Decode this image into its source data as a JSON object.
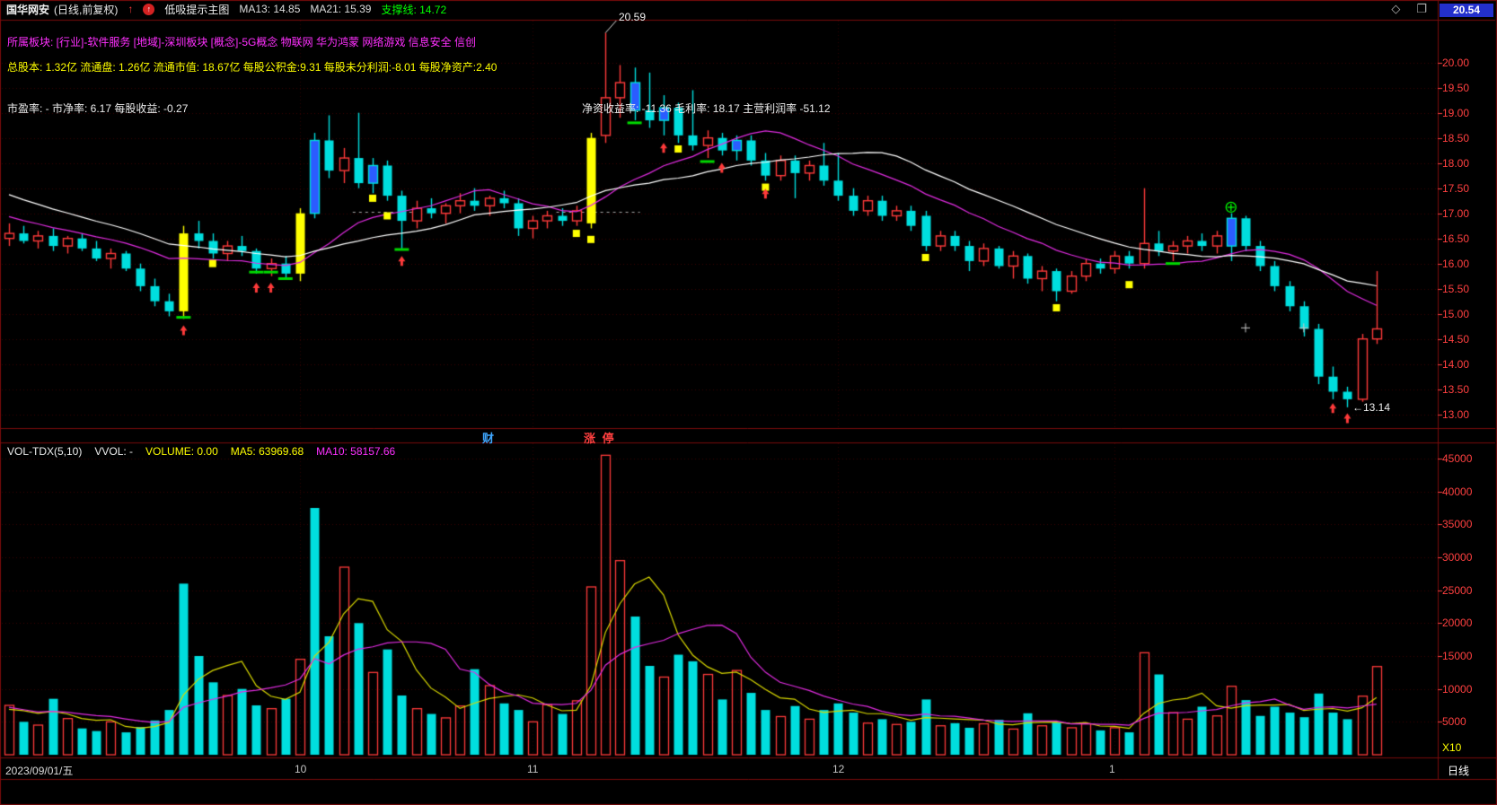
{
  "title_bar": {
    "stock": "国华网安",
    "period": "(日线,前复权)",
    "indicator": "低吸提示主图",
    "ma13": "MA13: 14.85",
    "ma21": "MA21: 15.39",
    "support": "支撑线: 14.72",
    "top_right_price": "20.54"
  },
  "icons": {
    "signal_arrow": "↑",
    "diamond": "◇",
    "window_box": "❐"
  },
  "info": {
    "sector": "所属板块: [行业]-软件服务 [地域]-深圳板块 [概念]-5G概念 物联网 华为鸿蒙 网络游戏 信息安全 信创",
    "capital": "总股本: 1.32亿 流通盘: 1.26亿 流通市值: 18.67亿 每股公积金:9.31 每股未分利润:-8.01 每股净资产:2.40",
    "valuation": "市盈率: - 市净率: 6.17 每股收益: -0.27",
    "profitability": "净资收益率: -11.36 毛利率: 18.17 主营利润率 -51.12"
  },
  "events": [
    {
      "i": 33,
      "label": "财",
      "color": "#3fa7ff"
    },
    {
      "i": 40,
      "label": "涨 停",
      "color": "#ff4040"
    }
  ],
  "volume_header": {
    "name": "VOL-TDX(5,10)",
    "vvol": "VVOL: -",
    "volume": "VOLUME: 0.00",
    "ma5": "MA5: 63969.68",
    "ma10": "MA10: 58157.66"
  },
  "axis": {
    "price_labels": [
      "20.00",
      "19.50",
      "19.00",
      "18.50",
      "18.00",
      "17.50",
      "17.00",
      "16.50",
      "16.00",
      "15.50",
      "15.00",
      "14.50",
      "14.00",
      "13.50",
      "13.00"
    ],
    "volume_labels": [
      "45000",
      "40000",
      "35000",
      "30000",
      "25000",
      "20000",
      "15000",
      "10000",
      "5000"
    ],
    "volume_unit": "X10"
  },
  "bottom_bar": {
    "date": "2023/09/01/五",
    "period": "日线"
  },
  "annotations": {
    "high": "20.59",
    "high_index": 41,
    "low": "←13.14",
    "low_index": 92,
    "low_price": 13.14
  },
  "chart_data": {
    "type": "candlestick",
    "title": "国华网安 日线 前复权",
    "price_axis": {
      "min": 13.0,
      "max": 20.78,
      "step": 0.5
    },
    "volume_axis": {
      "min": 0,
      "max": 45000,
      "step": 5000
    },
    "months": [
      [
        20,
        "10"
      ],
      [
        36,
        "11"
      ],
      [
        57,
        "12"
      ],
      [
        76,
        "1"
      ]
    ],
    "candles": [
      [
        16.5,
        16.8,
        16.35,
        16.6
      ],
      [
        16.6,
        16.75,
        16.4,
        16.45
      ],
      [
        16.45,
        16.65,
        16.3,
        16.55
      ],
      [
        16.55,
        16.7,
        16.25,
        16.35
      ],
      [
        16.35,
        16.55,
        16.2,
        16.5
      ],
      [
        16.5,
        16.6,
        16.25,
        16.3
      ],
      [
        16.3,
        16.45,
        16.05,
        16.1
      ],
      [
        16.1,
        16.3,
        15.9,
        16.2
      ],
      [
        16.2,
        16.25,
        15.85,
        15.9
      ],
      [
        15.9,
        16.0,
        15.45,
        15.55
      ],
      [
        15.55,
        15.7,
        15.15,
        15.25
      ],
      [
        15.25,
        15.4,
        14.95,
        15.05
      ],
      [
        15.05,
        16.75,
        14.9,
        16.6,
        "y"
      ],
      [
        16.6,
        16.85,
        16.3,
        16.45
      ],
      [
        16.45,
        16.6,
        16.1,
        16.2
      ],
      [
        16.2,
        16.45,
        16.05,
        16.35
      ],
      [
        16.35,
        16.55,
        16.15,
        16.25
      ],
      [
        16.25,
        16.3,
        15.8,
        15.9
      ],
      [
        15.9,
        16.1,
        15.75,
        16.0
      ],
      [
        16.0,
        16.15,
        15.7,
        15.8
      ],
      [
        15.8,
        17.1,
        15.65,
        17.0,
        "y"
      ],
      [
        17.0,
        18.6,
        16.9,
        18.45,
        "b"
      ],
      [
        18.45,
        18.95,
        17.7,
        17.85
      ],
      [
        17.85,
        18.3,
        17.6,
        18.1
      ],
      [
        18.1,
        19.0,
        17.5,
        17.6
      ],
      [
        17.6,
        18.1,
        17.4,
        17.95,
        "b"
      ],
      [
        17.95,
        18.05,
        17.25,
        17.35
      ],
      [
        17.35,
        17.45,
        16.3,
        16.85
      ],
      [
        16.85,
        17.25,
        16.7,
        17.1
      ],
      [
        17.1,
        17.3,
        16.9,
        17.0
      ],
      [
        17.0,
        17.2,
        16.8,
        17.15
      ],
      [
        17.15,
        17.4,
        17.0,
        17.25
      ],
      [
        17.25,
        17.5,
        17.05,
        17.15
      ],
      [
        17.15,
        17.35,
        16.95,
        17.3
      ],
      [
        17.3,
        17.45,
        17.1,
        17.2
      ],
      [
        17.2,
        17.3,
        16.55,
        16.7
      ],
      [
        16.7,
        16.95,
        16.5,
        16.85
      ],
      [
        16.85,
        17.05,
        16.7,
        16.95
      ],
      [
        16.95,
        17.1,
        16.75,
        16.85
      ],
      [
        16.85,
        17.15,
        16.75,
        17.05
      ],
      [
        16.8,
        18.6,
        16.7,
        18.5,
        "y"
      ],
      [
        18.55,
        20.59,
        18.4,
        19.3
      ],
      [
        19.3,
        19.95,
        18.9,
        19.6
      ],
      [
        19.6,
        19.9,
        18.85,
        19.05,
        "b"
      ],
      [
        19.05,
        19.8,
        18.7,
        18.85
      ],
      [
        18.85,
        19.35,
        18.55,
        19.1,
        "b"
      ],
      [
        19.1,
        19.2,
        18.4,
        18.55
      ],
      [
        18.55,
        19.45,
        18.25,
        18.35
      ],
      [
        18.35,
        18.65,
        18.1,
        18.5
      ],
      [
        18.5,
        18.6,
        18.15,
        18.25
      ],
      [
        18.25,
        18.55,
        18.05,
        18.45,
        "b"
      ],
      [
        18.45,
        18.55,
        17.95,
        18.05
      ],
      [
        18.05,
        18.2,
        17.65,
        17.75
      ],
      [
        17.75,
        18.15,
        17.65,
        18.05
      ],
      [
        18.05,
        18.15,
        17.3,
        17.8
      ],
      [
        17.8,
        18.05,
        17.65,
        17.95
      ],
      [
        17.95,
        18.4,
        17.55,
        17.65
      ],
      [
        17.65,
        18.2,
        17.25,
        17.35
      ],
      [
        17.35,
        17.5,
        16.95,
        17.05
      ],
      [
        17.05,
        17.35,
        16.95,
        17.25
      ],
      [
        17.25,
        17.35,
        16.85,
        16.95
      ],
      [
        16.95,
        17.15,
        16.85,
        17.05
      ],
      [
        17.05,
        17.15,
        16.65,
        16.75
      ],
      [
        16.95,
        17.05,
        16.25,
        16.35
      ],
      [
        16.35,
        16.65,
        16.25,
        16.55
      ],
      [
        16.55,
        16.65,
        16.25,
        16.35
      ],
      [
        16.35,
        16.45,
        15.85,
        16.05
      ],
      [
        16.05,
        16.4,
        15.95,
        16.3
      ],
      [
        16.3,
        16.35,
        15.9,
        15.95
      ],
      [
        15.95,
        16.25,
        15.7,
        16.15
      ],
      [
        16.15,
        16.2,
        15.6,
        15.7
      ],
      [
        15.7,
        15.95,
        15.45,
        15.85
      ],
      [
        15.85,
        15.9,
        15.25,
        15.45
      ],
      [
        15.45,
        15.85,
        15.4,
        15.75
      ],
      [
        15.75,
        16.1,
        15.65,
        16.0
      ],
      [
        16.0,
        16.1,
        15.8,
        15.9
      ],
      [
        15.9,
        16.25,
        15.8,
        16.15
      ],
      [
        16.15,
        16.25,
        15.9,
        16.0
      ],
      [
        16.0,
        17.5,
        15.9,
        16.4
      ],
      [
        16.4,
        16.65,
        16.15,
        16.25
      ],
      [
        16.25,
        16.45,
        16.05,
        16.35
      ],
      [
        16.35,
        16.55,
        16.2,
        16.45
      ],
      [
        16.45,
        16.6,
        16.25,
        16.35
      ],
      [
        16.35,
        16.65,
        16.2,
        16.55
      ],
      [
        16.35,
        17.0,
        16.05,
        16.9,
        "b"
      ],
      [
        16.9,
        16.95,
        16.25,
        16.35
      ],
      [
        16.35,
        16.45,
        15.85,
        15.95
      ],
      [
        15.95,
        16.05,
        15.45,
        15.55
      ],
      [
        15.55,
        15.65,
        15.05,
        15.15
      ],
      [
        15.15,
        15.25,
        14.55,
        14.7
      ],
      [
        14.7,
        14.8,
        13.6,
        13.75
      ],
      [
        13.75,
        13.95,
        13.3,
        13.45
      ],
      [
        13.45,
        13.55,
        13.14,
        13.3
      ],
      [
        13.3,
        14.6,
        13.25,
        14.5
      ],
      [
        14.5,
        15.85,
        14.4,
        14.7
      ]
    ],
    "volumes": [
      7500,
      5000,
      4500,
      8500,
      5500,
      4000,
      3600,
      5000,
      3400,
      4200,
      5200,
      6800,
      26000,
      15000,
      11000,
      9000,
      10000,
      7500,
      7000,
      8500,
      14500,
      37500,
      18000,
      28500,
      20000,
      12500,
      16000,
      9000,
      7000,
      6200,
      5600,
      7400,
      13000,
      10500,
      7800,
      6800,
      5000,
      7600,
      6200,
      8200,
      25500,
      45500,
      29500,
      21000,
      13500,
      11800,
      15200,
      14200,
      12200,
      8400,
      12800,
      9400,
      6800,
      5800,
      7400,
      5400,
      6800,
      7800,
      6400,
      4800,
      5400,
      4600,
      5000,
      8400,
      4400,
      4800,
      4100,
      4700,
      5300,
      3900,
      6300,
      4400,
      4900,
      4100,
      4700,
      3700,
      4100,
      3400,
      15500,
      12200,
      6400,
      5400,
      7300,
      5900,
      10400,
      8300,
      5900,
      7300,
      6400,
      5700,
      9300,
      6400,
      5400,
      8900,
      13400
    ],
    "vol_color_overrides": {
      "12": "c",
      "21": "c"
    },
    "ma_seed_price": [
      18.8,
      18.6,
      18.45,
      18.3,
      18.15,
      18.0,
      17.85,
      17.7,
      17.6,
      17.5,
      17.4,
      17.3,
      17.2,
      17.1,
      17.0,
      16.9,
      16.8,
      16.7,
      16.6,
      16.55,
      16.5
    ],
    "ma_seed_vol": [
      9000,
      8500,
      8000,
      7500,
      7000,
      6500,
      6000,
      6500,
      7000,
      7500
    ],
    "marks": {
      "yellow_squares": [
        [
          14,
          16.0
        ],
        [
          25,
          17.3
        ],
        [
          26,
          16.95
        ],
        [
          39,
          16.6
        ],
        [
          40,
          16.48
        ],
        [
          46,
          18.28
        ],
        [
          52,
          17.52
        ],
        [
          63,
          16.12
        ],
        [
          72,
          15.12
        ],
        [
          77,
          15.58
        ]
      ],
      "green_dashes": [
        [
          12,
          14.93
        ],
        [
          17,
          15.83
        ],
        [
          18,
          15.83
        ],
        [
          19,
          15.7
        ],
        [
          27,
          16.28
        ],
        [
          43,
          18.8
        ],
        [
          48,
          18.03
        ],
        [
          80,
          16.0
        ]
      ],
      "red_arrows": [
        [
          12,
          14.7
        ],
        [
          17,
          15.55
        ],
        [
          18,
          15.55
        ],
        [
          27,
          16.08
        ],
        [
          45,
          18.33
        ],
        [
          49,
          17.93
        ],
        [
          52,
          17.42
        ],
        [
          91,
          13.15
        ],
        [
          92,
          12.95
        ]
      ],
      "green_plus": [
        [
          84,
          17.12
        ]
      ],
      "white_plus": [
        [
          85,
          14.72
        ],
        [
          89,
          14.72
        ]
      ],
      "dashed_segments": [
        [
          24,
          28,
          17.03
        ],
        [
          38,
          43,
          17.03
        ]
      ]
    },
    "colors": {
      "up": "#ff3a3a",
      "down": "#00dede",
      "paint_yellow": "#ffff00",
      "paint_blue": "#2b5cff",
      "ma_fast": "#e02ce0",
      "ma_slow": "#ffffff",
      "vol_ma5": "#d8d800",
      "vol_ma10": "#e02ce0",
      "grid": "#3a0202",
      "frame": "#7a0b0b",
      "axis_text": "#ff4040",
      "support_green": "#00ff00"
    }
  }
}
